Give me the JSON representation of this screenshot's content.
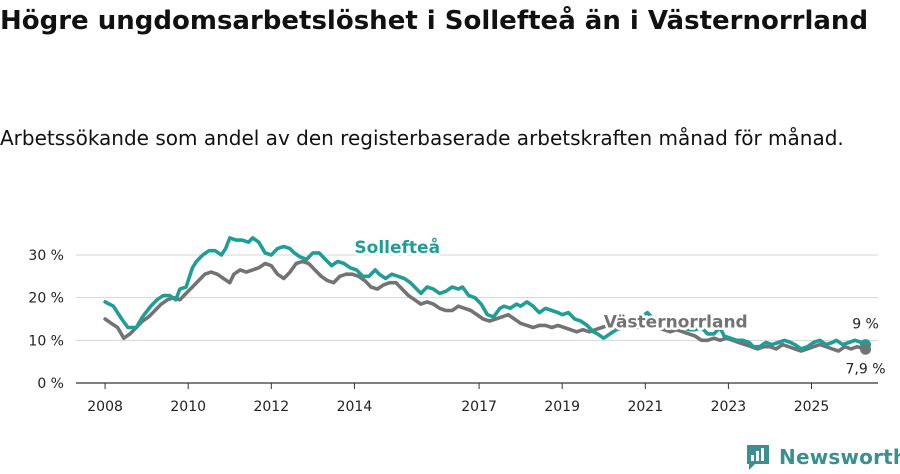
{
  "title": "Högre ungdomsarbetslöshet i Sollefteå än i Västernorrland",
  "subtitle": "Arbetssökande som andel av den registerbaserade arbetskraften månad för månad.",
  "brand": {
    "name": "Newsworthy",
    "icon": "newsworthy-logo-icon"
  },
  "colors": {
    "sollefte": "#1f9e96",
    "vasternorrland": "#737373",
    "grid": "#d4d4d4",
    "axis": "#333333"
  },
  "chart_data": {
    "type": "line",
    "title": "Högre ungdomsarbetslöshet i Sollefteå än i Västernorrland",
    "xlabel": "",
    "ylabel": "",
    "xlim": [
      2007.3,
      2026.6
    ],
    "ylim": [
      0,
      30
    ],
    "y_ticks": [
      0,
      10,
      20,
      30
    ],
    "y_tick_labels": [
      "0 %",
      "10 %",
      "20 %",
      "30 %"
    ],
    "x_ticks": [
      2008,
      2010,
      2012,
      2014,
      2017,
      2019,
      2021,
      2023,
      2025
    ],
    "x_tick_labels": [
      "2008",
      "2010",
      "2012",
      "2014",
      "2017",
      "2019",
      "2021",
      "2023",
      "2025"
    ],
    "grid": true,
    "series": [
      {
        "name": "Sollefteå",
        "color": "#1f9e96",
        "end_label": "9 %",
        "points": [
          [
            2008.0,
            19.0
          ],
          [
            2008.2,
            18.0
          ],
          [
            2008.4,
            15.0
          ],
          [
            2008.55,
            13.0
          ],
          [
            2008.75,
            13.0
          ],
          [
            2008.9,
            15.5
          ],
          [
            2009.1,
            18.0
          ],
          [
            2009.25,
            19.5
          ],
          [
            2009.4,
            20.5
          ],
          [
            2009.55,
            20.5
          ],
          [
            2009.7,
            19.5
          ],
          [
            2009.8,
            22.0
          ],
          [
            2009.95,
            22.5
          ],
          [
            2010.1,
            27.0
          ],
          [
            2010.2,
            28.5
          ],
          [
            2010.35,
            30.0
          ],
          [
            2010.5,
            31.0
          ],
          [
            2010.65,
            31.0
          ],
          [
            2010.8,
            30.0
          ],
          [
            2010.9,
            31.5
          ],
          [
            2011.0,
            34.0
          ],
          [
            2011.15,
            33.5
          ],
          [
            2011.3,
            33.5
          ],
          [
            2011.45,
            33.0
          ],
          [
            2011.55,
            34.0
          ],
          [
            2011.7,
            33.0
          ],
          [
            2011.85,
            30.5
          ],
          [
            2012.0,
            30.0
          ],
          [
            2012.15,
            31.5
          ],
          [
            2012.3,
            32.0
          ],
          [
            2012.45,
            31.5
          ],
          [
            2012.55,
            30.5
          ],
          [
            2012.7,
            29.5
          ],
          [
            2012.85,
            29.0
          ],
          [
            2013.0,
            30.5
          ],
          [
            2013.15,
            30.5
          ],
          [
            2013.3,
            29.0
          ],
          [
            2013.45,
            27.5
          ],
          [
            2013.6,
            28.5
          ],
          [
            2013.75,
            28.0
          ],
          [
            2013.9,
            27.0
          ],
          [
            2014.05,
            26.5
          ],
          [
            2014.2,
            25.0
          ],
          [
            2014.35,
            25.0
          ],
          [
            2014.5,
            26.5
          ],
          [
            2014.6,
            25.5
          ],
          [
            2014.75,
            24.5
          ],
          [
            2014.9,
            25.5
          ],
          [
            2015.05,
            25.0
          ],
          [
            2015.2,
            24.5
          ],
          [
            2015.35,
            23.5
          ],
          [
            2015.5,
            22.0
          ],
          [
            2015.6,
            21.0
          ],
          [
            2015.75,
            22.5
          ],
          [
            2015.9,
            22.0
          ],
          [
            2016.05,
            21.0
          ],
          [
            2016.2,
            21.5
          ],
          [
            2016.35,
            22.5
          ],
          [
            2016.5,
            22.0
          ],
          [
            2016.6,
            22.5
          ],
          [
            2016.75,
            20.5
          ],
          [
            2016.9,
            20.0
          ],
          [
            2017.05,
            18.5
          ],
          [
            2017.2,
            16.0
          ],
          [
            2017.35,
            15.5
          ],
          [
            2017.5,
            17.5
          ],
          [
            2017.6,
            18.0
          ],
          [
            2017.75,
            17.5
          ],
          [
            2017.9,
            18.5
          ],
          [
            2018.0,
            18.0
          ],
          [
            2018.15,
            19.0
          ],
          [
            2018.3,
            18.0
          ],
          [
            2018.45,
            16.5
          ],
          [
            2018.6,
            17.5
          ],
          [
            2018.75,
            17.0
          ],
          [
            2018.9,
            16.5
          ],
          [
            2019.0,
            16.0
          ],
          [
            2019.15,
            16.5
          ],
          [
            2019.3,
            15.0
          ],
          [
            2019.45,
            14.5
          ],
          [
            2019.6,
            13.5
          ],
          [
            2019.75,
            12.0
          ],
          [
            2019.85,
            11.5
          ],
          [
            2020.0,
            10.5
          ],
          [
            2020.15,
            11.5
          ],
          [
            2020.3,
            12.5
          ],
          [
            2020.45,
            13.0
          ],
          [
            2020.6,
            14.0
          ],
          [
            2020.75,
            15.0
          ],
          [
            2020.9,
            15.5
          ],
          [
            2021.05,
            16.5
          ],
          [
            2021.15,
            15.5
          ],
          [
            2021.3,
            15.0
          ],
          [
            2021.45,
            14.5
          ],
          [
            2021.6,
            14.0
          ],
          [
            2021.75,
            13.5
          ],
          [
            2021.9,
            13.0
          ],
          [
            2022.05,
            12.5
          ],
          [
            2022.2,
            12.5
          ],
          [
            2022.35,
            13.0
          ],
          [
            2022.5,
            11.5
          ],
          [
            2022.65,
            11.5
          ],
          [
            2022.8,
            13.0
          ],
          [
            2022.9,
            11.0
          ],
          [
            2023.05,
            10.5
          ],
          [
            2023.2,
            10.0
          ],
          [
            2023.35,
            10.0
          ],
          [
            2023.5,
            9.5
          ],
          [
            2023.6,
            8.5
          ],
          [
            2023.75,
            8.5
          ],
          [
            2023.9,
            9.5
          ],
          [
            2024.05,
            9.0
          ],
          [
            2024.2,
            9.5
          ],
          [
            2024.35,
            10.0
          ],
          [
            2024.5,
            9.5
          ],
          [
            2024.6,
            9.0
          ],
          [
            2024.75,
            8.0
          ],
          [
            2024.9,
            8.5
          ],
          [
            2025.05,
            9.5
          ],
          [
            2025.2,
            10.0
          ],
          [
            2025.35,
            9.0
          ],
          [
            2025.5,
            9.5
          ],
          [
            2025.6,
            10.0
          ],
          [
            2025.75,
            9.0
          ],
          [
            2025.9,
            9.5
          ],
          [
            2026.05,
            10.0
          ],
          [
            2026.2,
            9.5
          ],
          [
            2026.3,
            9.0
          ]
        ]
      },
      {
        "name": "Västernorrland",
        "color": "#737373",
        "end_label": "7,9 %",
        "points": [
          [
            2008.0,
            15.0
          ],
          [
            2008.15,
            14.0
          ],
          [
            2008.3,
            13.0
          ],
          [
            2008.45,
            10.5
          ],
          [
            2008.6,
            11.5
          ],
          [
            2008.75,
            13.0
          ],
          [
            2008.9,
            14.5
          ],
          [
            2009.05,
            15.5
          ],
          [
            2009.2,
            17.0
          ],
          [
            2009.35,
            18.5
          ],
          [
            2009.5,
            19.5
          ],
          [
            2009.65,
            20.0
          ],
          [
            2009.8,
            19.5
          ],
          [
            2009.95,
            21.0
          ],
          [
            2010.1,
            22.5
          ],
          [
            2010.25,
            24.0
          ],
          [
            2010.4,
            25.5
          ],
          [
            2010.55,
            26.0
          ],
          [
            2010.7,
            25.5
          ],
          [
            2010.85,
            24.5
          ],
          [
            2011.0,
            23.5
          ],
          [
            2011.1,
            25.5
          ],
          [
            2011.25,
            26.5
          ],
          [
            2011.4,
            26.0
          ],
          [
            2011.55,
            26.5
          ],
          [
            2011.7,
            27.0
          ],
          [
            2011.85,
            28.0
          ],
          [
            2012.0,
            27.5
          ],
          [
            2012.15,
            25.5
          ],
          [
            2012.3,
            24.5
          ],
          [
            2012.45,
            26.0
          ],
          [
            2012.6,
            28.0
          ],
          [
            2012.75,
            28.5
          ],
          [
            2012.9,
            28.0
          ],
          [
            2013.05,
            26.5
          ],
          [
            2013.2,
            25.0
          ],
          [
            2013.35,
            24.0
          ],
          [
            2013.5,
            23.5
          ],
          [
            2013.65,
            25.0
          ],
          [
            2013.8,
            25.5
          ],
          [
            2013.95,
            25.5
          ],
          [
            2014.1,
            25.0
          ],
          [
            2014.25,
            24.0
          ],
          [
            2014.4,
            22.5
          ],
          [
            2014.55,
            22.0
          ],
          [
            2014.7,
            23.0
          ],
          [
            2014.85,
            23.5
          ],
          [
            2015.0,
            23.5
          ],
          [
            2015.15,
            22.0
          ],
          [
            2015.3,
            20.5
          ],
          [
            2015.45,
            19.5
          ],
          [
            2015.6,
            18.5
          ],
          [
            2015.75,
            19.0
          ],
          [
            2015.9,
            18.5
          ],
          [
            2016.05,
            17.5
          ],
          [
            2016.2,
            17.0
          ],
          [
            2016.35,
            17.0
          ],
          [
            2016.5,
            18.0
          ],
          [
            2016.65,
            17.5
          ],
          [
            2016.8,
            17.0
          ],
          [
            2016.95,
            16.0
          ],
          [
            2017.1,
            15.0
          ],
          [
            2017.25,
            14.5
          ],
          [
            2017.4,
            15.0
          ],
          [
            2017.55,
            15.5
          ],
          [
            2017.7,
            16.0
          ],
          [
            2017.85,
            15.0
          ],
          [
            2018.0,
            14.0
          ],
          [
            2018.15,
            13.5
          ],
          [
            2018.3,
            13.0
          ],
          [
            2018.45,
            13.5
          ],
          [
            2018.6,
            13.5
          ],
          [
            2018.75,
            13.0
          ],
          [
            2018.9,
            13.5
          ],
          [
            2019.05,
            13.0
          ],
          [
            2019.2,
            12.5
          ],
          [
            2019.35,
            12.0
          ],
          [
            2019.5,
            12.5
          ],
          [
            2019.65,
            12.0
          ],
          [
            2019.8,
            12.5
          ],
          [
            2019.95,
            13.0
          ],
          [
            2020.1,
            13.5
          ],
          [
            2020.25,
            14.0
          ],
          [
            2020.4,
            14.5
          ],
          [
            2020.55,
            14.0
          ],
          [
            2020.7,
            13.5
          ],
          [
            2020.85,
            13.0
          ],
          [
            2021.0,
            13.0
          ],
          [
            2021.15,
            13.5
          ],
          [
            2021.3,
            13.0
          ],
          [
            2021.45,
            12.5
          ],
          [
            2021.6,
            12.0
          ],
          [
            2021.75,
            12.5
          ],
          [
            2021.9,
            12.0
          ],
          [
            2022.05,
            11.5
          ],
          [
            2022.2,
            11.0
          ],
          [
            2022.35,
            10.0
          ],
          [
            2022.5,
            10.0
          ],
          [
            2022.65,
            10.5
          ],
          [
            2022.8,
            10.0
          ],
          [
            2022.95,
            10.5
          ],
          [
            2023.1,
            10.0
          ],
          [
            2023.25,
            9.5
          ],
          [
            2023.4,
            9.0
          ],
          [
            2023.55,
            8.5
          ],
          [
            2023.7,
            8.0
          ],
          [
            2023.85,
            8.5
          ],
          [
            2024.0,
            8.5
          ],
          [
            2024.15,
            8.0
          ],
          [
            2024.3,
            9.0
          ],
          [
            2024.45,
            8.5
          ],
          [
            2024.6,
            8.0
          ],
          [
            2024.75,
            7.5
          ],
          [
            2024.9,
            8.0
          ],
          [
            2025.05,
            8.5
          ],
          [
            2025.2,
            9.0
          ],
          [
            2025.35,
            8.5
          ],
          [
            2025.5,
            8.0
          ],
          [
            2025.65,
            7.5
          ],
          [
            2025.8,
            8.5
          ],
          [
            2025.95,
            8.0
          ],
          [
            2026.1,
            8.5
          ],
          [
            2026.3,
            7.9
          ]
        ]
      }
    ],
    "annotations": [
      {
        "series": "Sollefteå",
        "text": "Sollefteå",
        "x": 2014.0,
        "y": 30.5
      },
      {
        "series": "Västernorrland",
        "text": "Västernorrland",
        "x": 2020.0,
        "y": 13.0
      }
    ]
  }
}
